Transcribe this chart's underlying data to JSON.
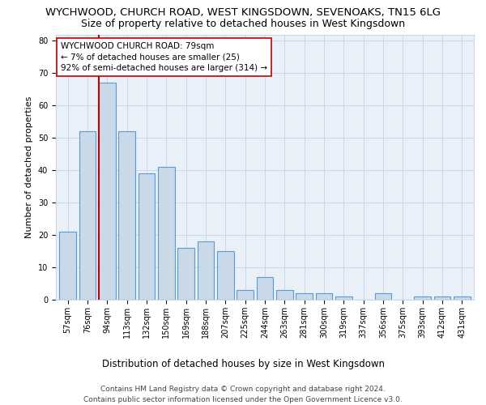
{
  "title_line1": "WYCHWOOD, CHURCH ROAD, WEST KINGSDOWN, SEVENOAKS, TN15 6LG",
  "title_line2": "Size of property relative to detached houses in West Kingsdown",
  "xlabel": "Distribution of detached houses by size in West Kingsdown",
  "ylabel": "Number of detached properties",
  "categories": [
    "57sqm",
    "76sqm",
    "94sqm",
    "113sqm",
    "132sqm",
    "150sqm",
    "169sqm",
    "188sqm",
    "207sqm",
    "225sqm",
    "244sqm",
    "263sqm",
    "281sqm",
    "300sqm",
    "319sqm",
    "337sqm",
    "356sqm",
    "375sqm",
    "393sqm",
    "412sqm",
    "431sqm"
  ],
  "values": [
    21,
    52,
    67,
    52,
    39,
    41,
    16,
    18,
    15,
    3,
    7,
    3,
    2,
    2,
    1,
    0,
    2,
    0,
    1,
    1,
    1
  ],
  "bar_color": "#c9d9e8",
  "bar_edge_color": "#5b9bd5",
  "property_line_color": "#c00000",
  "annotation_text": "WYCHWOOD CHURCH ROAD: 79sqm\n← 7% of detached houses are smaller (25)\n92% of semi-detached houses are larger (314) →",
  "annotation_box_color": "#ffffff",
  "annotation_box_edge": "#c00000",
  "ylim": [
    0,
    82
  ],
  "yticks": [
    0,
    10,
    20,
    30,
    40,
    50,
    60,
    70,
    80
  ],
  "footnote": "Contains HM Land Registry data © Crown copyright and database right 2024.\nContains public sector information licensed under the Open Government Licence v3.0.",
  "grid_color": "#c8d8e8",
  "bg_color": "#eaf0f7",
  "title1_fontsize": 9.5,
  "title2_fontsize": 9,
  "xlabel_fontsize": 8.5,
  "ylabel_fontsize": 8,
  "tick_fontsize": 7,
  "annot_fontsize": 7.5,
  "footnote_fontsize": 6.5
}
